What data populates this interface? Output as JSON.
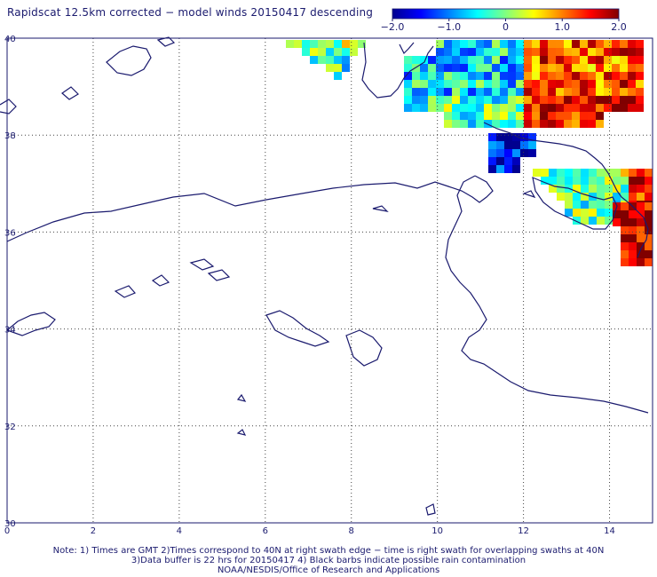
{
  "title": "Rapidscat 12.5km corrected − model winds 20150417 descending",
  "colorbar": {
    "ticks": [
      "−2.0",
      "−1.0",
      "0",
      "1.0",
      "2.0"
    ],
    "tick_values": [
      -2.0,
      -1.0,
      0,
      1.0,
      2.0
    ],
    "range": [
      -2.0,
      2.0
    ],
    "palette": [
      "#00008f",
      "#0000ff",
      "#0080ff",
      "#00ffff",
      "#80ff80",
      "#ffff00",
      "#ff8000",
      "#ff0000",
      "#800000"
    ]
  },
  "axes": {
    "lon_ticks": [
      "0",
      "2",
      "4",
      "6",
      "8",
      "10",
      "12",
      "14"
    ],
    "lon_values": [
      0,
      2,
      4,
      6,
      8,
      10,
      12,
      14
    ],
    "lat_ticks": [
      "40",
      "38",
      "36",
      "34",
      "32",
      "30"
    ],
    "lat_values": [
      40,
      38,
      36,
      34,
      32,
      30
    ],
    "lon_range": [
      0,
      15
    ],
    "lat_range": [
      30,
      40
    ],
    "grid": "dotted"
  },
  "notes": [
    "Note: 1) Times are GMT 2)Times correspond to 40N at right swath edge − time is right swath for overlapping swaths at 40N",
    "3)Data buffer is 22 hrs for 20150417 4) Black barbs indicate possible rain contamination",
    "NOAA/NESDIS/Office of Research and Applications"
  ],
  "colors": {
    "coast": "#1a1a6e",
    "grid": "#444444",
    "text": "#1a1a6e"
  }
}
